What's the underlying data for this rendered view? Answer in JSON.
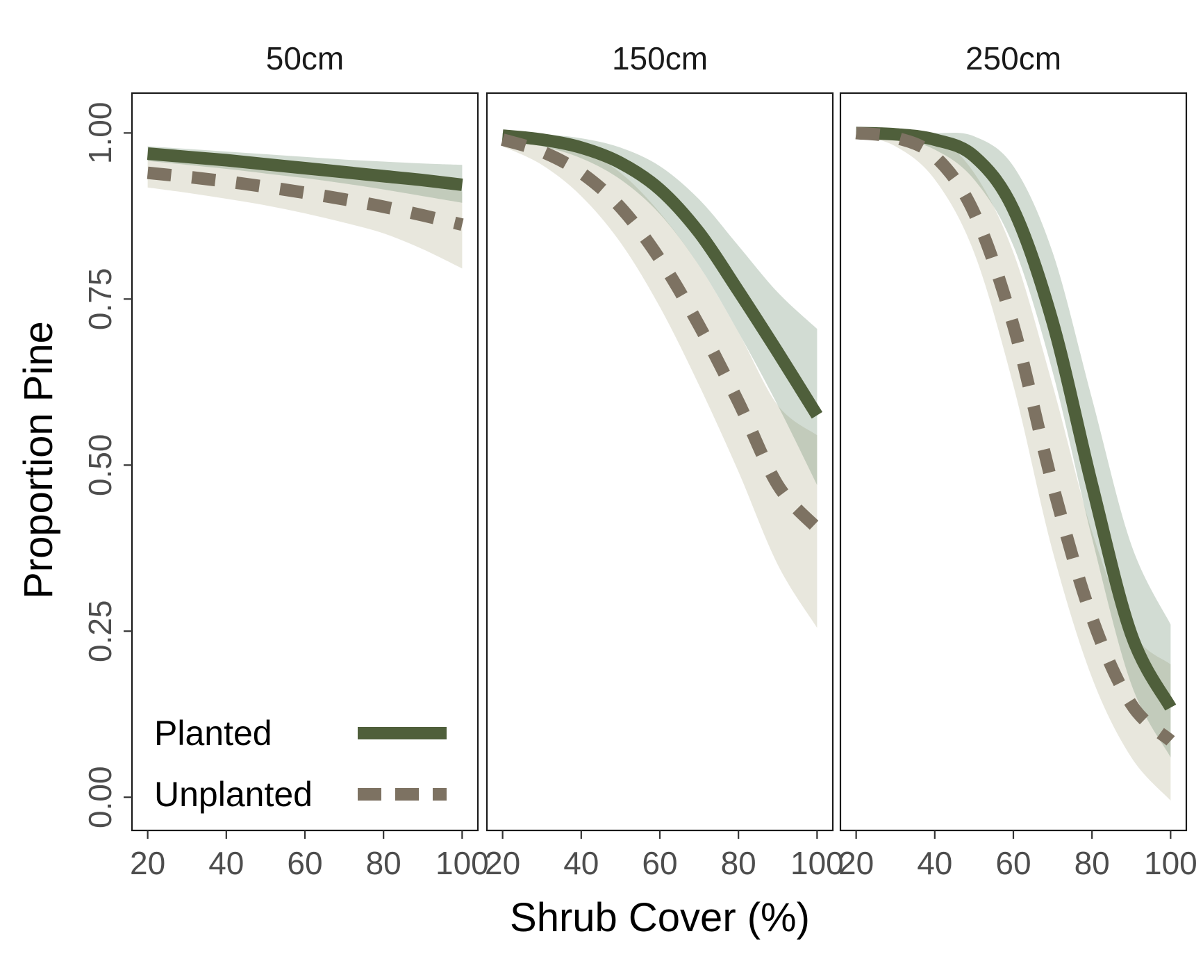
{
  "chart_data": {
    "type": "line",
    "xlabel": "Shrub Cover (%)",
    "ylabel": "Proportion Pine",
    "xlim": [
      16,
      104
    ],
    "ylim": [
      -0.05,
      1.06
    ],
    "x_ticks": [
      20,
      40,
      60,
      80,
      100
    ],
    "x_tick_labels": [
      "20",
      "40",
      "60",
      "80",
      "100"
    ],
    "y_ticks": [
      0,
      0.25,
      0.5,
      0.75,
      1.0
    ],
    "y_tick_labels": [
      "0.00",
      "0.25",
      "0.50",
      "0.75",
      "1.00"
    ],
    "grid": false,
    "legend": {
      "placement": "bottom-left inside first panel",
      "entries": [
        {
          "label": "Planted",
          "style": "solid",
          "color": "#4f5f3b"
        },
        {
          "label": "Unplanted",
          "style": "dashed",
          "color": "#7d7262"
        }
      ]
    },
    "colors": {
      "planted_line": "#4f5f3b",
      "planted_band": "#6b8a6e",
      "unplanted_line": "#7d7262",
      "unplanted_band": "#b8b394"
    },
    "x": [
      20,
      30,
      40,
      50,
      60,
      70,
      80,
      90,
      100
    ],
    "panels": [
      {
        "title": "50cm",
        "planted": {
          "values": [
            0.969,
            0.964,
            0.959,
            0.953,
            0.947,
            0.941,
            0.935,
            0.929,
            0.922
          ],
          "lower": [
            0.958,
            0.952,
            0.946,
            0.939,
            0.932,
            0.924,
            0.915,
            0.905,
            0.895
          ],
          "upper": [
            0.98,
            0.976,
            0.972,
            0.968,
            0.964,
            0.96,
            0.957,
            0.954,
            0.952
          ]
        },
        "unplanted": {
          "values": [
            0.94,
            0.934,
            0.927,
            0.919,
            0.91,
            0.9,
            0.889,
            0.876,
            0.862
          ],
          "lower": [
            0.918,
            0.91,
            0.901,
            0.891,
            0.879,
            0.865,
            0.849,
            0.825,
            0.796
          ],
          "upper": [
            0.962,
            0.958,
            0.953,
            0.948,
            0.942,
            0.935,
            0.928,
            0.92,
            0.912
          ]
        }
      },
      {
        "title": "150cm",
        "planted": {
          "values": [
            0.996,
            0.99,
            0.978,
            0.955,
            0.915,
            0.85,
            0.762,
            0.67,
            0.575
          ],
          "lower": [
            0.99,
            0.98,
            0.962,
            0.93,
            0.878,
            0.8,
            0.7,
            0.59,
            0.47
          ],
          "upper": [
            1.0,
            0.998,
            0.992,
            0.978,
            0.95,
            0.9,
            0.83,
            0.76,
            0.705
          ]
        },
        "unplanted": {
          "values": [
            0.99,
            0.972,
            0.94,
            0.888,
            0.81,
            0.71,
            0.595,
            0.47,
            0.405
          ],
          "lower": [
            0.98,
            0.952,
            0.905,
            0.835,
            0.738,
            0.62,
            0.49,
            0.35,
            0.255
          ],
          "upper": [
            1.0,
            0.992,
            0.975,
            0.94,
            0.88,
            0.8,
            0.7,
            0.59,
            0.545
          ]
        }
      },
      {
        "title": "250cm",
        "planted": {
          "values": [
            1.0,
            0.998,
            0.99,
            0.965,
            0.885,
            0.715,
            0.47,
            0.245,
            0.135
          ],
          "lower": [
            0.998,
            0.992,
            0.975,
            0.93,
            0.83,
            0.64,
            0.39,
            0.17,
            0.06
          ],
          "upper": [
            1.0,
            1.0,
            1.0,
            0.995,
            0.95,
            0.82,
            0.6,
            0.38,
            0.26
          ]
        },
        "unplanted": {
          "values": [
            1.0,
            0.993,
            0.965,
            0.88,
            0.71,
            0.47,
            0.27,
            0.14,
            0.085
          ],
          "lower": [
            0.998,
            0.98,
            0.93,
            0.82,
            0.62,
            0.37,
            0.18,
            0.06,
            -0.005
          ],
          "upper": [
            1.0,
            1.0,
            0.995,
            0.94,
            0.82,
            0.62,
            0.4,
            0.25,
            0.2
          ]
        }
      }
    ]
  }
}
